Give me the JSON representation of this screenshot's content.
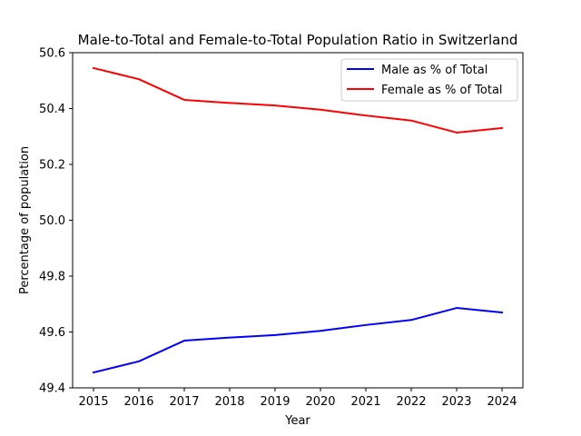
{
  "chart_data": {
    "type": "line",
    "title": "Male-to-Total and Female-to-Total Population Ratio in Switzerland",
    "xlabel": "Year",
    "ylabel": "Percentage of population",
    "x": [
      2015,
      2016,
      2017,
      2018,
      2019,
      2020,
      2021,
      2022,
      2023,
      2024
    ],
    "x_ticks": [
      "2015",
      "2016",
      "2017",
      "2018",
      "2019",
      "2020",
      "2021",
      "2022",
      "2023",
      "2024"
    ],
    "ylim": [
      49.4,
      50.6
    ],
    "y_ticks": [
      "49.4",
      "49.6",
      "49.8",
      "50.0",
      "50.2",
      "50.4",
      "50.6"
    ],
    "grid": false,
    "legend_position": "top-right",
    "series": [
      {
        "name": "Male as % of Total",
        "color": "#0000ff",
        "values": [
          49.455,
          49.495,
          49.569,
          49.58,
          49.589,
          49.604,
          49.625,
          49.643,
          49.686,
          49.67
        ]
      },
      {
        "name": "Female as % of Total",
        "color": "#ff0000",
        "values": [
          50.545,
          50.505,
          50.431,
          50.42,
          50.411,
          50.396,
          50.375,
          50.357,
          50.314,
          50.33
        ]
      }
    ]
  }
}
